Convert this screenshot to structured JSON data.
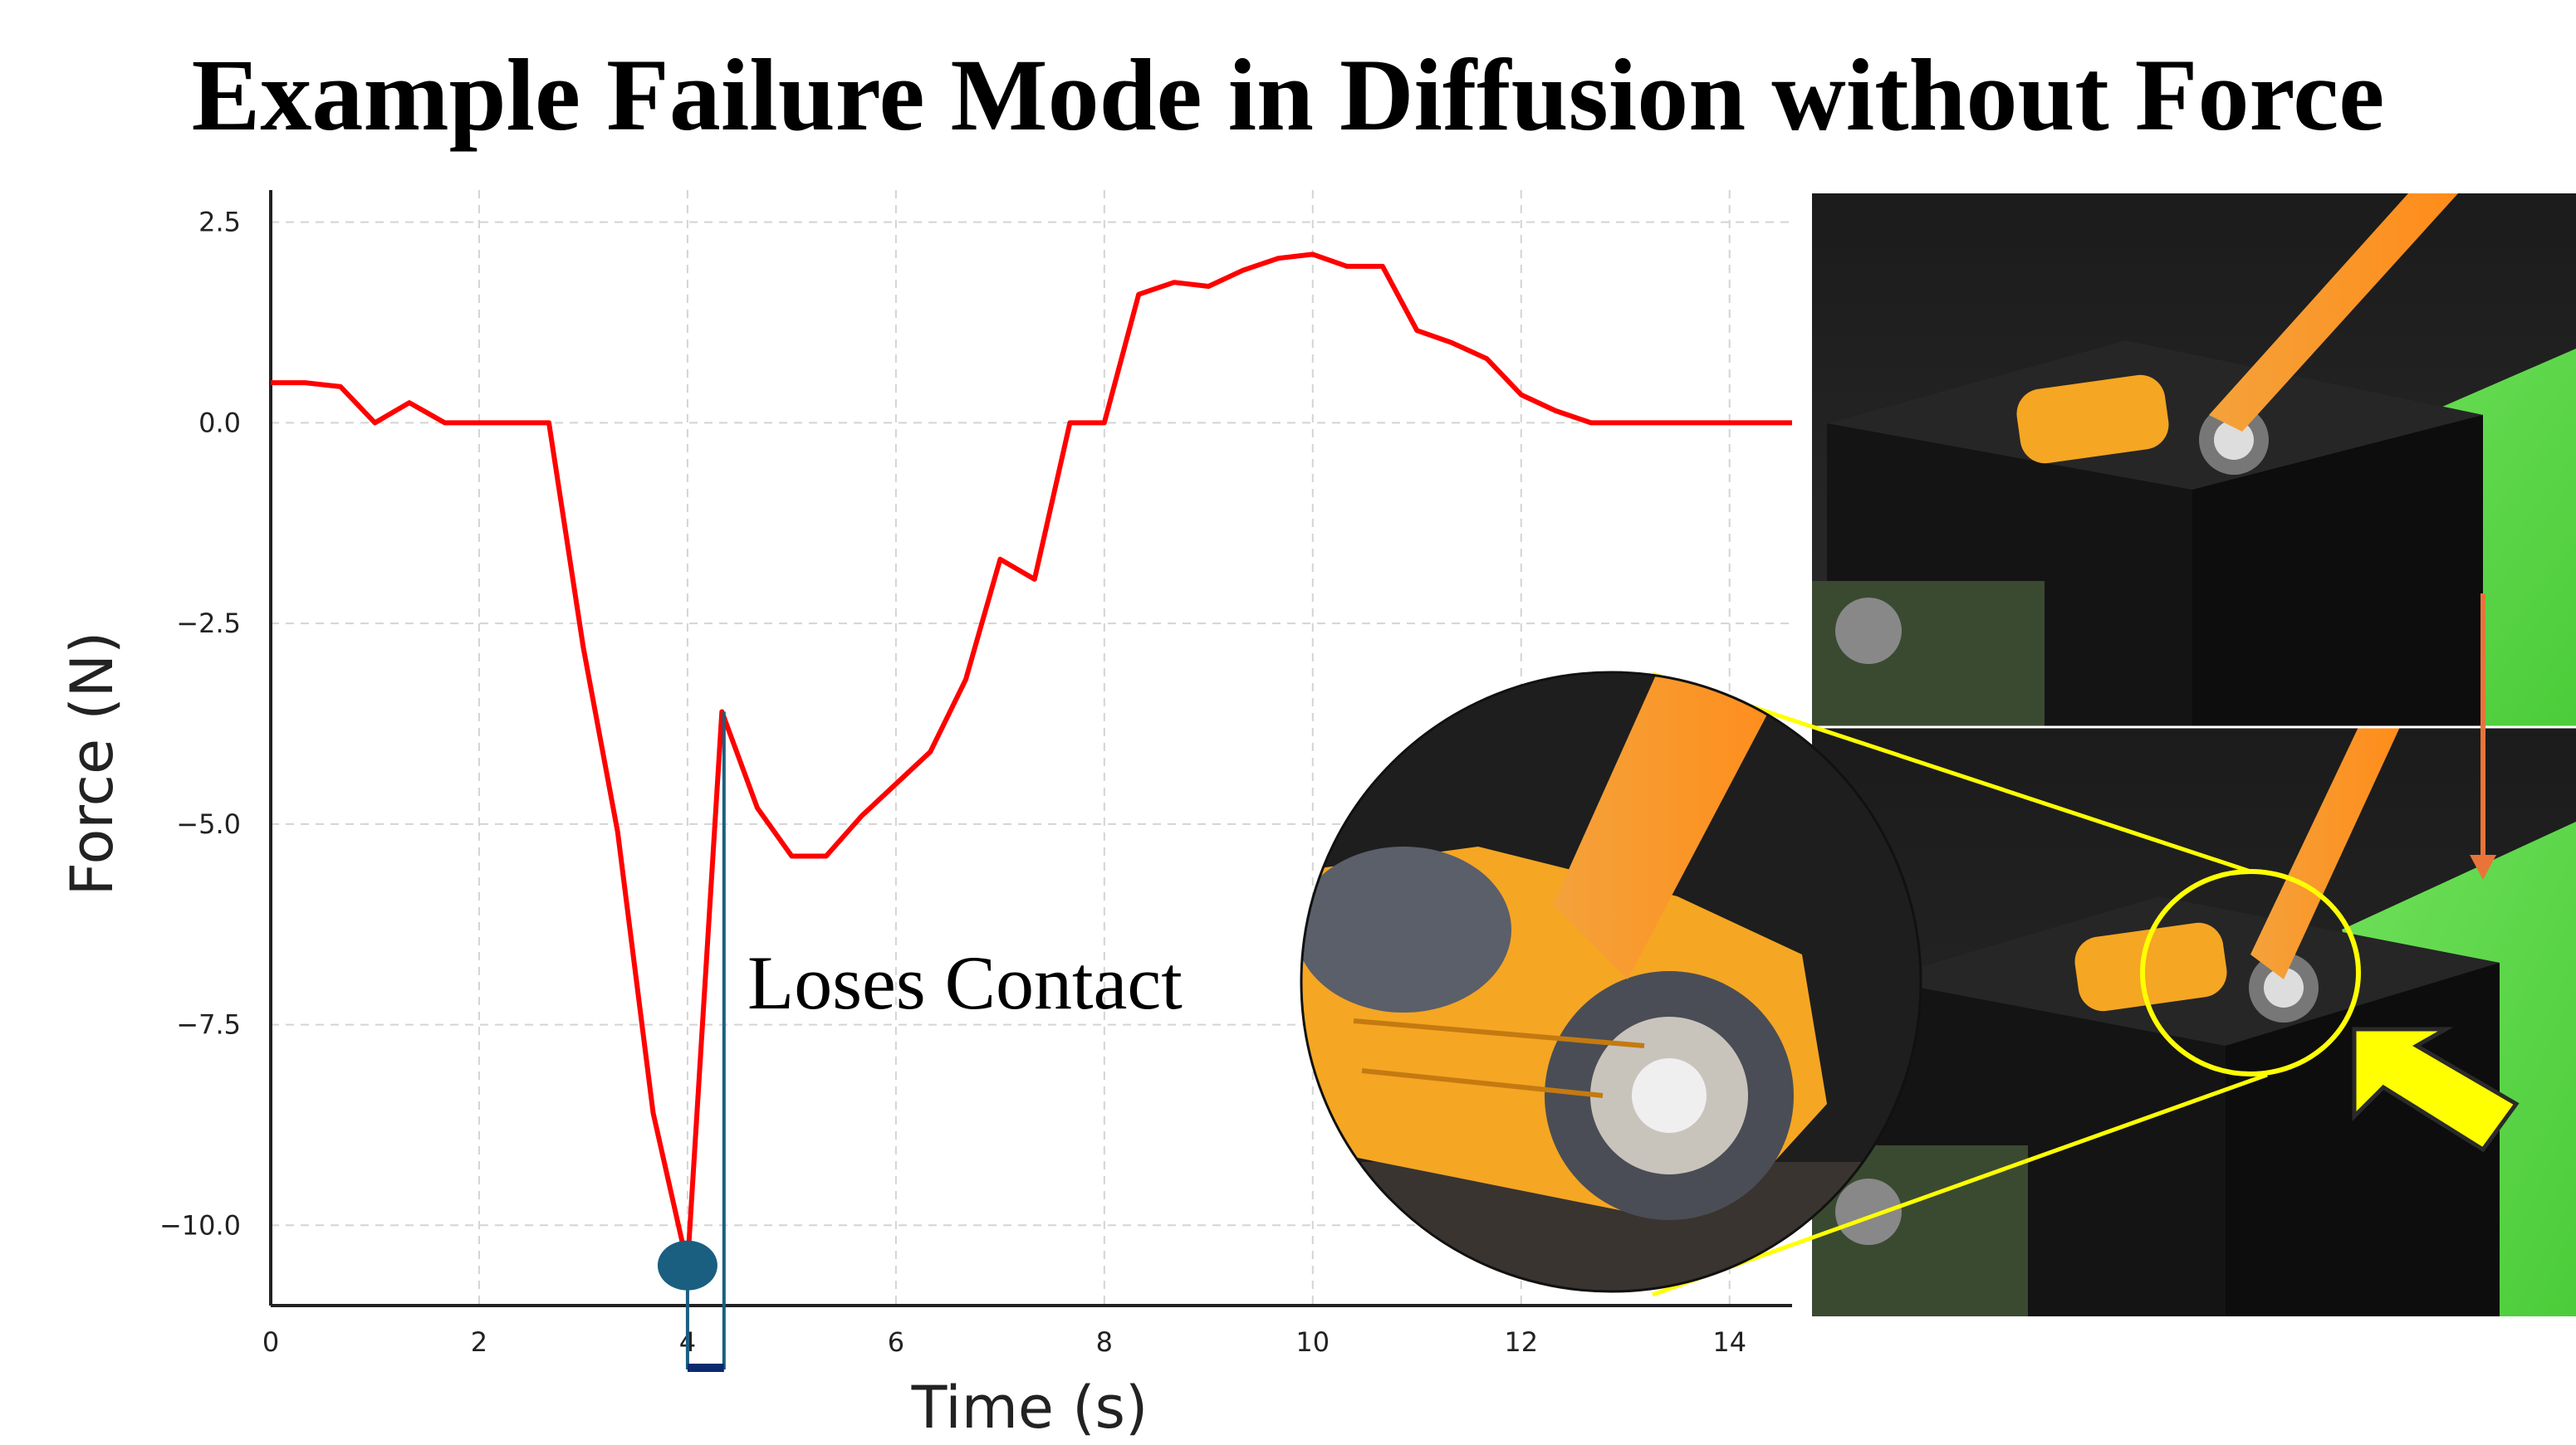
{
  "title": "Example Failure Mode in Diffusion without Force",
  "chart_data": {
    "type": "line",
    "xlabel": "Time (s)",
    "ylabel": "Force (N)",
    "xlim": [
      0,
      14.6
    ],
    "ylim": [
      -11.0,
      2.9
    ],
    "xticks": [
      0,
      2,
      4,
      6,
      8,
      10,
      12,
      14
    ],
    "yticks": [
      2.5,
      0.0,
      -2.5,
      -5.0,
      -7.5,
      -10.0
    ],
    "ytick_labels": [
      "2.5",
      "0.0",
      "−2.5",
      "−5.0",
      "−7.5",
      "−10.0"
    ],
    "grid": true,
    "series": [
      {
        "color": "#ff0000",
        "x": [
          0,
          0.33,
          0.67,
          1.0,
          1.33,
          1.67,
          2.0,
          2.33,
          2.67,
          3.0,
          3.33,
          3.67,
          4.0,
          4.33,
          4.67,
          5.0,
          5.33,
          5.67,
          6.0,
          6.33,
          6.67,
          7.0,
          7.33,
          7.67,
          8.0,
          8.33,
          8.67,
          9.0,
          9.33,
          9.67,
          10.0,
          10.33,
          10.67,
          11.0,
          11.33,
          11.67,
          12.0,
          12.33,
          12.67,
          13.0,
          13.33,
          13.67,
          14.0,
          14.6
        ],
        "values": [
          0.5,
          0.5,
          0.45,
          0.0,
          0.25,
          0.0,
          0.0,
          0.0,
          0.0,
          -2.8,
          -5.1,
          -8.6,
          -10.5,
          -3.6,
          -4.8,
          -5.4,
          -5.4,
          -4.9,
          -4.5,
          -4.1,
          -3.2,
          -1.7,
          -1.95,
          0.0,
          0.0,
          1.6,
          1.75,
          1.7,
          1.9,
          2.05,
          2.1,
          1.95,
          1.95,
          1.15,
          1.0,
          0.8,
          0.35,
          0.15,
          0.0,
          0.0,
          0.0,
          0.0,
          0.0,
          0.0
        ]
      }
    ],
    "marker": {
      "x": 4.0,
      "y": -10.5,
      "color": "#1a5f80"
    },
    "annotation": {
      "text": "Loses Contact",
      "bracket_x": [
        4.0,
        4.35
      ],
      "bracket_top_y": -3.6
    }
  },
  "colors": {
    "line": "#ff0000",
    "marker": "#1a5f80",
    "highlight": "#ffff00",
    "arrow_orange": "#e8743a"
  }
}
